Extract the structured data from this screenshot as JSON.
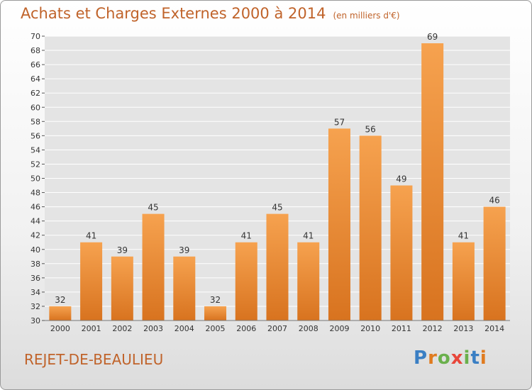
{
  "title": "Achats et Charges Externes 2000 à 2014",
  "subtitle": "(en milliers d'€)",
  "city": "REJET-DE-BEAULIEU",
  "logo": {
    "text": "Proxiti",
    "letter_colors": [
      "#3a7fc4",
      "#e07b1f",
      "#6ab04c",
      "#e8463a",
      "#6ab04c",
      "#3a7fc4",
      "#e07b1f"
    ]
  },
  "colors": {
    "bar_top": "#f6a24f",
    "bar_bottom": "#d8731f",
    "title": "#c0632a",
    "grid": "#ffffff",
    "plot_background": "#e4e4e4"
  },
  "chart_data": {
    "type": "bar",
    "title": "Achats et Charges Externes 2000 à 2014",
    "subtitle": "(en milliers d'€)",
    "categories": [
      "2000",
      "2001",
      "2002",
      "2003",
      "2004",
      "2005",
      "2006",
      "2007",
      "2008",
      "2009",
      "2010",
      "2011",
      "2012",
      "2013",
      "2014"
    ],
    "values": [
      32,
      41,
      39,
      45,
      39,
      32,
      41,
      45,
      41,
      57,
      56,
      49,
      69,
      41,
      46
    ],
    "ylim": [
      30,
      70
    ],
    "ytick_step": 2,
    "grid": true,
    "legend": "none"
  }
}
